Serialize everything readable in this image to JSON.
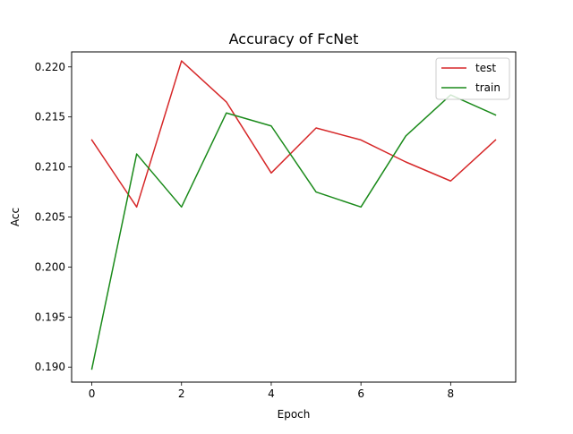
{
  "chart_data": {
    "type": "line",
    "title": "Accuracy of FcNet",
    "xlabel": "Epoch",
    "ylabel": "Acc",
    "x": [
      0,
      1,
      2,
      3,
      4,
      5,
      6,
      7,
      8,
      9
    ],
    "xlim": [
      -0.45,
      9.45
    ],
    "ylim": [
      0.1885,
      0.2215
    ],
    "xticks": [
      0,
      2,
      4,
      6,
      8
    ],
    "xtick_labels": [
      "0",
      "2",
      "4",
      "6",
      "8"
    ],
    "yticks": [
      0.19,
      0.195,
      0.2,
      0.205,
      0.21,
      0.215,
      0.22
    ],
    "ytick_labels": [
      "0.190",
      "0.195",
      "0.200",
      "0.205",
      "0.210",
      "0.215",
      "0.220"
    ],
    "grid": false,
    "legend_position": "upper right",
    "series": [
      {
        "name": "test",
        "color": "#d62728",
        "values": [
          0.2127,
          0.206,
          0.2206,
          0.2165,
          0.2094,
          0.2139,
          0.2127,
          0.2105,
          0.2086,
          0.2127
        ]
      },
      {
        "name": "train",
        "color": "#1a8a1a",
        "values": [
          0.1898,
          0.2113,
          0.206,
          0.2154,
          0.2141,
          0.2075,
          0.206,
          0.2131,
          0.2172,
          0.2152
        ]
      }
    ]
  }
}
